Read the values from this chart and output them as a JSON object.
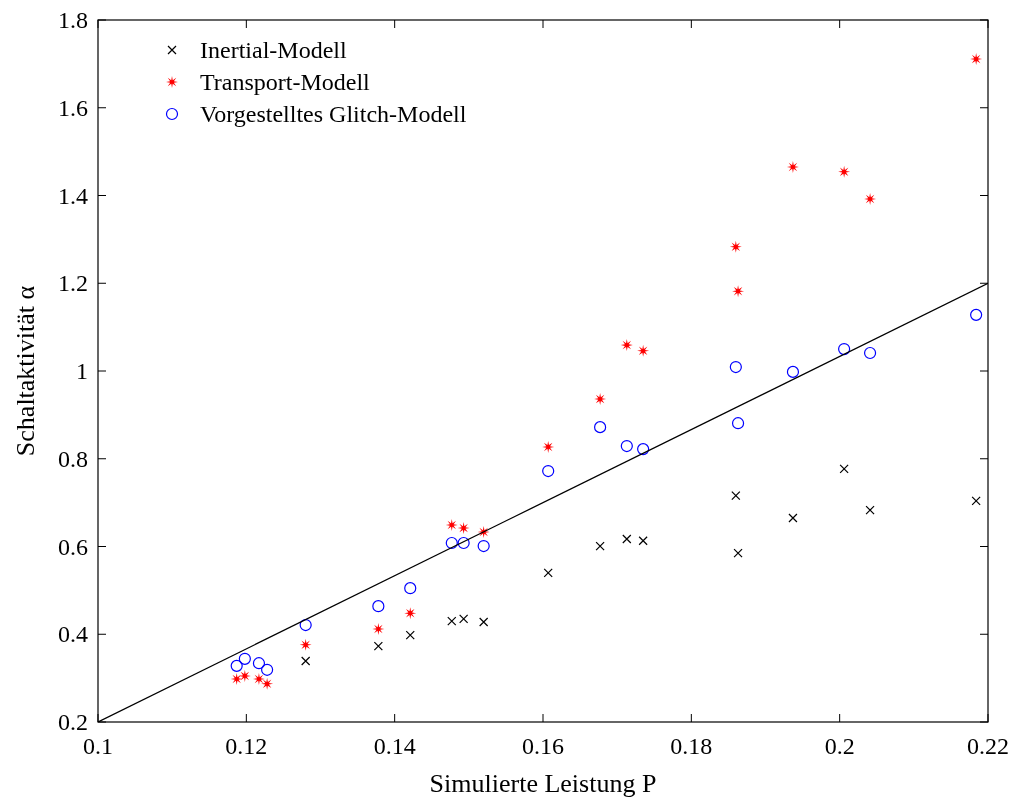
{
  "chart_data": {
    "type": "scatter",
    "xlabel": "Simulierte Leistung P",
    "ylabel": "Schaltaktivität α",
    "xlim": [
      0.1,
      0.22
    ],
    "xticks": [
      0.1,
      0.12,
      0.14,
      0.16,
      0.18,
      0.2,
      0.22
    ],
    "ylim": [
      0.2,
      1.8
    ],
    "yticks": [
      0.2,
      0.4,
      0.6,
      0.8,
      1,
      1.2,
      1.4,
      1.6,
      1.8
    ],
    "grid": false,
    "legend": "top left",
    "series": [
      {
        "name": "Inertial-Modell",
        "color": "#000000",
        "marker": "cross",
        "x": [
          0.128,
          0.1378,
          0.1421,
          0.1477,
          0.1493,
          0.152,
          0.1607,
          0.1677,
          0.1713,
          0.1735,
          0.186,
          0.1863,
          0.1937,
          0.2006,
          0.2041,
          0.2184
        ],
        "values": [
          0.339,
          0.373,
          0.398,
          0.43,
          0.435,
          0.428,
          0.54,
          0.601,
          0.617,
          0.613,
          0.716,
          0.585,
          0.665,
          0.777,
          0.683,
          0.704
        ]
      },
      {
        "name": "Transport-Modell",
        "color": "#ff0000",
        "marker": "star",
        "x": [
          0.1187,
          0.1198,
          0.1217,
          0.1228,
          0.128,
          0.1378,
          0.1421,
          0.1477,
          0.1493,
          0.152,
          0.1607,
          0.1677,
          0.1713,
          0.1735,
          0.186,
          0.1863,
          0.1937,
          0.2006,
          0.2041,
          0.2184
        ],
        "values": [
          0.298,
          0.305,
          0.298,
          0.287,
          0.376,
          0.412,
          0.448,
          0.649,
          0.642,
          0.633,
          0.827,
          0.936,
          1.059,
          1.046,
          1.283,
          1.182,
          1.465,
          1.454,
          1.392,
          1.711
        ]
      },
      {
        "name": "Vorgestelltes Glitch-Modell",
        "color": "#0000ff",
        "marker": "circle",
        "x": [
          0.1187,
          0.1198,
          0.1217,
          0.1228,
          0.128,
          0.1378,
          0.1421,
          0.1477,
          0.1493,
          0.152,
          0.1607,
          0.1677,
          0.1713,
          0.1735,
          0.186,
          0.1863,
          0.1937,
          0.2006,
          0.2041,
          0.2184
        ],
        "values": [
          0.328,
          0.344,
          0.334,
          0.319,
          0.421,
          0.464,
          0.505,
          0.608,
          0.608,
          0.601,
          0.772,
          0.872,
          0.829,
          0.822,
          1.009,
          0.881,
          0.998,
          1.05,
          1.041,
          1.128
        ]
      },
      {
        "type": "line",
        "color": "#000000",
        "marker": "none",
        "x": [
          0.1,
          0.22
        ],
        "values": [
          0.2,
          1.2
        ]
      }
    ]
  }
}
